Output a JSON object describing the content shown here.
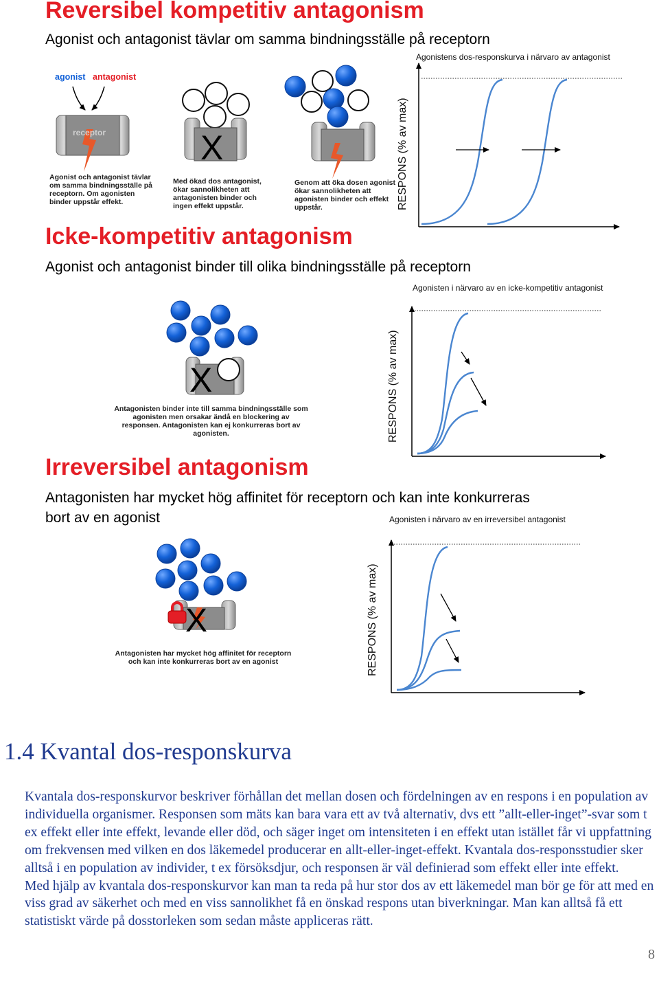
{
  "section_reversible": {
    "title": "Reversibel kompetitiv antagonism",
    "subtitle": "Agonist och antagonist tävlar om samma bindningsställe på receptorn",
    "label_agonist": "agonist",
    "label_antagonist": "antagonist",
    "label_receptor": "receptor",
    "caption_1": "Agonist och antagonist tävlar om samma bindningsställe på receptorn. Om agonisten binder uppstår effekt.",
    "caption_2": "Med ökad dos antagonist, ökar sannolikheten att antagonisten binder och ingen effekt uppstår.",
    "caption_3": "Genom att öka dosen agonist ökar sannolikheten att agonisten binder och effekt uppstår.",
    "graph_title": "Agonistens dos-responskurva i närvaro av antagonist",
    "graph_ylabel": "RESPONS (% av max)",
    "block_mark": "X"
  },
  "section_noncompetitive": {
    "title": "Icke-kompetitiv antagonism",
    "subtitle": "Agonist och antagonist binder till olika bindningsställe på receptorn",
    "caption": "Antagonisten binder inte till samma bindningsställe som agonisten men orsakar ändå en blockering av responsen. Antagonisten kan ej konkurreras bort av agonisten.",
    "graph_title": "Agonisten i närvaro av en icke-kompetitiv antagonist",
    "graph_ylabel": "RESPONS (% av max)",
    "block_mark": "X"
  },
  "section_irreversible": {
    "title": "Irreversibel antagonism",
    "subtitle_line1": "Antagonisten har mycket hög affinitet för receptorn och kan inte konkurreras",
    "subtitle_line2": "bort av en agonist",
    "caption": "Antagonisten har mycket hög affinitet för receptorn och kan inte konkurreras bort av en agonist",
    "graph_title": "Agonisten i närvaro av en irreversibel antagonist",
    "graph_ylabel": "RESPONS (% av max)",
    "block_mark": "X"
  },
  "quantal": {
    "heading": "1.4 Kvantal dos-responskurva",
    "paragraph_1": "Kvantala dos-responskurvor beskriver förhållan det mellan dosen och fördelningen av en respons i en population av individuella organismer. Responsen som mäts kan bara vara ett av två alternativ, dvs ett ”allt-eller-inget”-svar som t ex effekt eller inte effekt, levande eller död, och säger inget om intensiteten i en effekt utan istället får vi uppfattning om frekvensen med vilken en dos läkemedel producerar en allt-eller-inget-effekt. Kvantala dos-responsstudier sker alltså i en population av individer, t ex försöksdjur, och responsen är väl definierad som effekt eller inte effekt.",
    "paragraph_2": "Med hjälp av kvantala dos-responskurvor kan man ta reda på hur stor dos av ett läkemedel man bör ge för att med en viss grad av säkerhet och med en viss sannolikhet få en önskad respons utan biverkningar. Man kan alltså få ett statistiskt värde på dosstorleken som sedan måste appliceras rätt."
  },
  "page_number": "8",
  "colors": {
    "heading_red": "#e41e26",
    "agonist_blue": "#1462d8",
    "receptor_grey": "#8c8c8c",
    "curve_blue": "#4a86d0",
    "body_blue": "#1f3a8f"
  }
}
